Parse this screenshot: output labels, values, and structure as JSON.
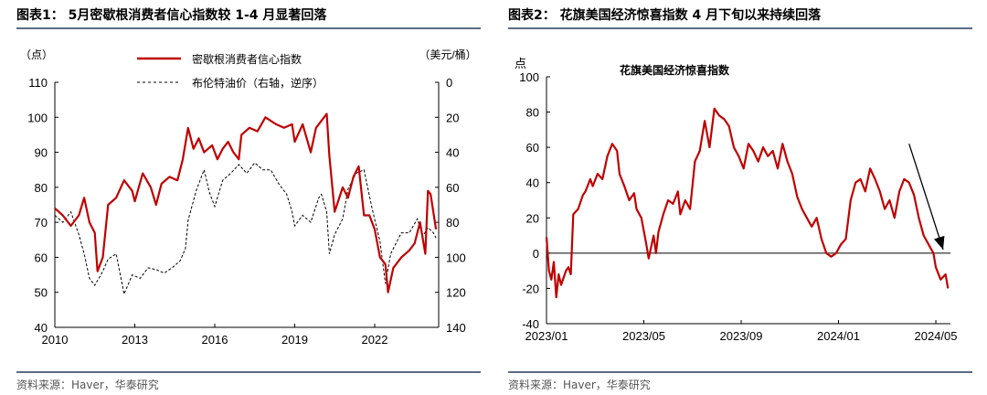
{
  "left_panel": {
    "title": "图表1：  5月密歇根消费者信心指数较 1-4 月显著回落",
    "source": "资料来源：Haver，华泰研究"
  },
  "right_panel": {
    "title": "图表2：  花旗美国经济惊喜指数 4 月下旬以来持续回落",
    "source": "资料来源：Haver，华泰研究"
  },
  "colors": {
    "red": "#c00000",
    "black": "#000000",
    "rule": "#5b6c86"
  },
  "chart_data": [
    {
      "type": "line",
      "title": "",
      "left_axis_unit": "（点）",
      "right_axis_unit": "（美元/桶）",
      "xlim": [
        2010.0,
        2024.4
      ],
      "x_ticks": [
        2010,
        2013,
        2016,
        2019,
        2022
      ],
      "x_tick_labels": [
        "2010",
        "2013",
        "2016",
        "2019",
        "2022"
      ],
      "ylim_left": [
        40,
        110
      ],
      "y_ticks_left": [
        40,
        50,
        60,
        70,
        80,
        90,
        100,
        110
      ],
      "ylim_right": [
        0,
        140
      ],
      "right_axis_inverted": true,
      "y_ticks_right": [
        0,
        20,
        40,
        60,
        80,
        100,
        120,
        140
      ],
      "legend_position": "top-center",
      "series": [
        {
          "name": "密歇根消费者信心指数",
          "axis": "left",
          "style": "solid",
          "color": "#c00000",
          "x": [
            2010.0,
            2010.3,
            2010.6,
            2010.9,
            2011.1,
            2011.3,
            2011.5,
            2011.6,
            2011.8,
            2012.0,
            2012.3,
            2012.6,
            2012.9,
            2013.0,
            2013.3,
            2013.6,
            2013.8,
            2014.0,
            2014.3,
            2014.6,
            2014.8,
            2015.0,
            2015.2,
            2015.4,
            2015.6,
            2015.9,
            2016.1,
            2016.3,
            2016.5,
            2016.7,
            2016.9,
            2017.0,
            2017.3,
            2017.6,
            2017.9,
            2018.1,
            2018.3,
            2018.6,
            2018.9,
            2019.0,
            2019.3,
            2019.6,
            2019.8,
            2020.0,
            2020.2,
            2020.3,
            2020.5,
            2020.8,
            2021.0,
            2021.2,
            2021.4,
            2021.6,
            2021.8,
            2022.0,
            2022.2,
            2022.4,
            2022.5,
            2022.7,
            2023.0,
            2023.3,
            2023.5,
            2023.7,
            2023.9,
            2024.0,
            2024.1,
            2024.3
          ],
          "y": [
            74,
            72,
            69,
            72,
            77,
            70,
            67,
            56,
            60,
            75,
            77,
            82,
            79,
            76,
            84,
            80,
            75,
            81,
            83,
            82,
            88,
            97,
            91,
            94,
            90,
            92,
            88,
            91,
            93,
            90,
            88,
            95,
            97,
            96,
            100,
            99,
            98,
            97,
            98,
            93,
            98,
            90,
            97,
            99,
            101,
            89,
            73,
            80,
            77,
            83,
            86,
            72,
            72,
            68,
            60,
            58,
            50,
            57,
            60,
            62,
            64,
            70,
            61,
            79,
            78,
            68
          ]
        },
        {
          "name": "布伦特油价（右轴，逆序）",
          "axis": "right",
          "style": "dashed",
          "color": "#000000",
          "x": [
            2010.0,
            2010.3,
            2010.6,
            2010.9,
            2011.1,
            2011.3,
            2011.5,
            2011.8,
            2012.0,
            2012.3,
            2012.6,
            2012.9,
            2013.2,
            2013.5,
            2013.8,
            2014.1,
            2014.4,
            2014.7,
            2014.9,
            2015.0,
            2015.3,
            2015.6,
            2015.8,
            2016.0,
            2016.3,
            2016.6,
            2016.9,
            2017.2,
            2017.5,
            2017.8,
            2018.1,
            2018.4,
            2018.7,
            2018.9,
            2019.0,
            2019.3,
            2019.6,
            2019.9,
            2020.0,
            2020.2,
            2020.3,
            2020.5,
            2020.8,
            2021.0,
            2021.3,
            2021.6,
            2021.9,
            2022.2,
            2022.4,
            2022.6,
            2022.8,
            2023.0,
            2023.3,
            2023.6,
            2023.8,
            2024.0,
            2024.2,
            2024.3
          ],
          "y": [
            76,
            80,
            74,
            87,
            98,
            112,
            116,
            108,
            101,
            98,
            121,
            110,
            112,
            106,
            107,
            109,
            106,
            102,
            95,
            79,
            62,
            50,
            63,
            71,
            56,
            52,
            47,
            52,
            46,
            50,
            50,
            58,
            64,
            74,
            82,
            76,
            80,
            66,
            64,
            74,
            98,
            87,
            78,
            61,
            52,
            50,
            72,
            91,
            115,
            98,
            92,
            86,
            86,
            78,
            88,
            83,
            86,
            89
          ]
        }
      ]
    },
    {
      "type": "line",
      "title": "花旗美国经济惊喜指数",
      "ylabel": "点",
      "xlim": [
        0,
        16.6
      ],
      "x_ticks": [
        0,
        4,
        8,
        12,
        16
      ],
      "x_tick_labels": [
        "2023/01",
        "2023/05",
        "2023/09",
        "2024/01",
        "2024/05"
      ],
      "ylim": [
        -40,
        100
      ],
      "y_ticks": [
        -40,
        -20,
        0,
        20,
        40,
        60,
        80,
        100
      ],
      "zero_line": true,
      "annotation": "downward arrow from ~2024/03 (value 62) to ~2024/05 (value 0)",
      "series": [
        {
          "name": "花旗美国经济惊喜指数",
          "color": "#c00000",
          "x": [
            0.0,
            0.1,
            0.2,
            0.3,
            0.4,
            0.5,
            0.6,
            0.8,
            0.9,
            1.0,
            1.1,
            1.3,
            1.5,
            1.6,
            1.8,
            1.9,
            2.1,
            2.3,
            2.5,
            2.7,
            2.9,
            3.0,
            3.2,
            3.4,
            3.6,
            3.7,
            3.9,
            4.1,
            4.2,
            4.4,
            4.5,
            4.6,
            4.8,
            5.0,
            5.2,
            5.4,
            5.5,
            5.7,
            5.9,
            6.1,
            6.3,
            6.5,
            6.7,
            6.9,
            7.1,
            7.3,
            7.5,
            7.7,
            7.9,
            8.1,
            8.3,
            8.5,
            8.7,
            8.9,
            9.1,
            9.3,
            9.5,
            9.7,
            9.9,
            10.1,
            10.3,
            10.5,
            10.7,
            10.9,
            11.1,
            11.3,
            11.5,
            11.7,
            11.9,
            12.1,
            12.3,
            12.5,
            12.7,
            12.9,
            13.1,
            13.3,
            13.5,
            13.7,
            13.9,
            14.1,
            14.3,
            14.5,
            14.7,
            14.9,
            15.1,
            15.3,
            15.5,
            15.7,
            15.9,
            16.0,
            16.2,
            16.4,
            16.5
          ],
          "y": [
            9,
            -10,
            -15,
            -5,
            -25,
            -12,
            -18,
            -10,
            -8,
            -12,
            22,
            25,
            33,
            35,
            42,
            38,
            45,
            42,
            55,
            62,
            58,
            45,
            38,
            30,
            34,
            25,
            20,
            5,
            -3,
            10,
            0,
            12,
            22,
            30,
            28,
            35,
            22,
            30,
            25,
            52,
            58,
            75,
            60,
            82,
            78,
            76,
            72,
            60,
            55,
            48,
            62,
            58,
            52,
            60,
            55,
            58,
            48,
            62,
            52,
            45,
            32,
            25,
            20,
            15,
            20,
            8,
            0,
            -2,
            0,
            5,
            8,
            30,
            40,
            42,
            35,
            48,
            42,
            35,
            25,
            30,
            20,
            35,
            42,
            40,
            33,
            20,
            10,
            5,
            0,
            -8,
            -15,
            -12,
            -20
          ]
        }
      ]
    }
  ]
}
